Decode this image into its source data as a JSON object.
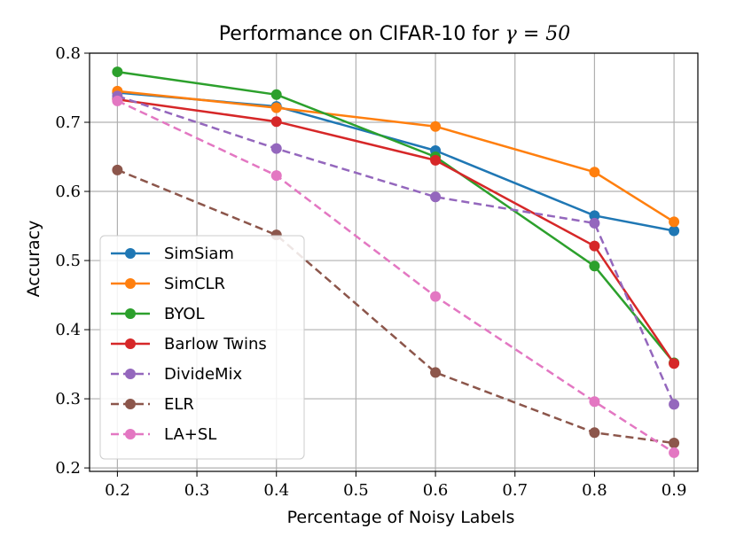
{
  "chart_data": {
    "type": "line",
    "title_prefix": "Performance on CIFAR-10 for ",
    "title_math": "γ = 50",
    "xlabel": "Percentage of Noisy Labels",
    "ylabel": "Accuracy",
    "xlim": [
      0.165,
      0.93
    ],
    "ylim": [
      0.195,
      0.8
    ],
    "xticks": [
      0.2,
      0.3,
      0.4,
      0.5,
      0.6,
      0.7,
      0.8,
      0.9
    ],
    "xtick_labels": [
      "0.2",
      "0.3",
      "0.4",
      "0.5",
      "0.6",
      "0.7",
      "0.8",
      "0.9"
    ],
    "yticks": [
      0.2,
      0.3,
      0.4,
      0.5,
      0.6,
      0.7,
      0.8
    ],
    "ytick_labels": [
      "0.2",
      "0.3",
      "0.4",
      "0.5",
      "0.6",
      "0.7",
      "0.8"
    ],
    "grid": true,
    "legend_position": "lower-left",
    "x": [
      0.2,
      0.4,
      0.6,
      0.8,
      0.9
    ],
    "series": [
      {
        "name": "SimSiam",
        "color": "#1f77b4",
        "dashed": false,
        "values": [
          0.743,
          0.723,
          0.659,
          0.565,
          0.543
        ]
      },
      {
        "name": "SimCLR",
        "color": "#ff7f0e",
        "dashed": false,
        "values": [
          0.745,
          0.721,
          0.694,
          0.628,
          0.556
        ]
      },
      {
        "name": "BYOL",
        "color": "#2ca02c",
        "dashed": false,
        "values": [
          0.773,
          0.74,
          0.65,
          0.492,
          0.352
        ]
      },
      {
        "name": "Barlow Twins",
        "color": "#d62728",
        "dashed": false,
        "values": [
          0.733,
          0.701,
          0.645,
          0.521,
          0.351
        ]
      },
      {
        "name": "DivideMix",
        "color": "#9467bd",
        "dashed": true,
        "values": [
          0.738,
          0.662,
          0.592,
          0.554,
          0.292
        ]
      },
      {
        "name": "ELR",
        "color": "#8c564b",
        "dashed": true,
        "values": [
          0.631,
          0.537,
          0.338,
          0.251,
          0.236
        ]
      },
      {
        "name": "LA+SL",
        "color": "#e377c2",
        "dashed": true,
        "values": [
          0.731,
          0.623,
          0.448,
          0.296,
          0.222
        ]
      }
    ]
  }
}
